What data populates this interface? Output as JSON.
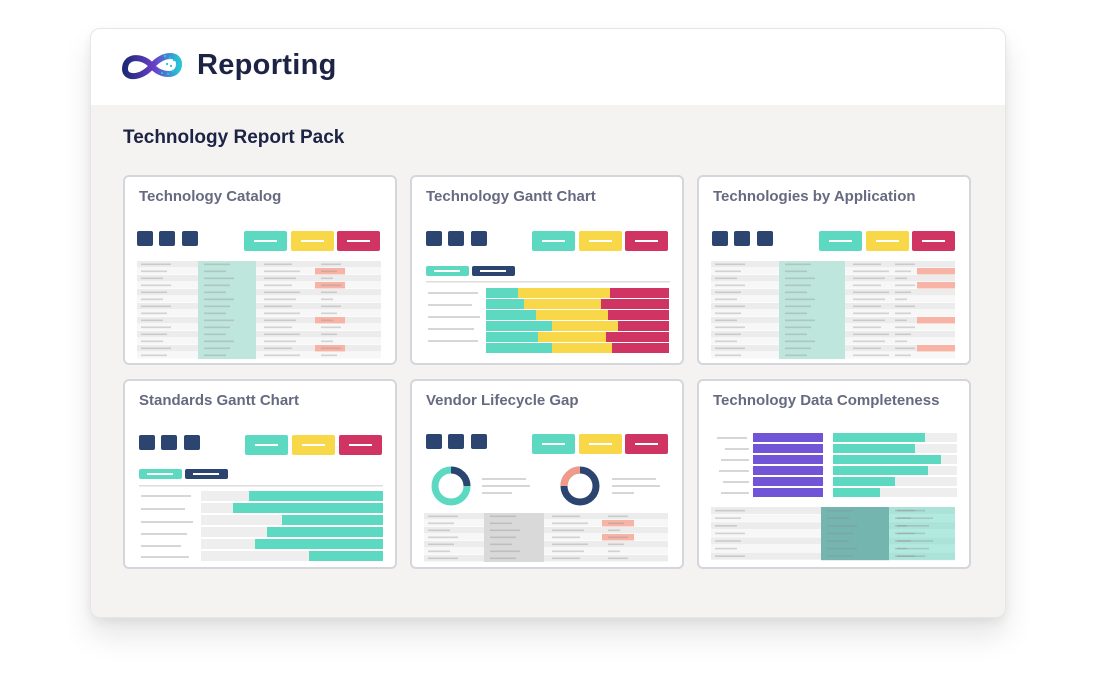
{
  "header": {
    "app_title": "Reporting",
    "logo_icon": "infinity-logo-icon"
  },
  "main": {
    "pack_title": "Technology Report Pack",
    "cards": [
      {
        "title": "Technology Catalog",
        "preview": "table"
      },
      {
        "title": "Technology Gantt Chart",
        "preview": "stacked-bars"
      },
      {
        "title": "Technologies by Application",
        "preview": "table"
      },
      {
        "title": "Standards Gantt Chart",
        "preview": "gantt"
      },
      {
        "title": "Vendor Lifecycle Gap",
        "preview": "donuts-table"
      },
      {
        "title": "Technology Data Completeness",
        "preview": "bars-table"
      }
    ]
  },
  "colors": {
    "navy": "#2b4570",
    "teal": "#5dd9c2",
    "yellow": "#f8d748",
    "red": "#cf3463",
    "purple": "#7155d6",
    "salmon": "#f29a8a",
    "title": "#1d2345",
    "muted_text": "#666a80"
  }
}
